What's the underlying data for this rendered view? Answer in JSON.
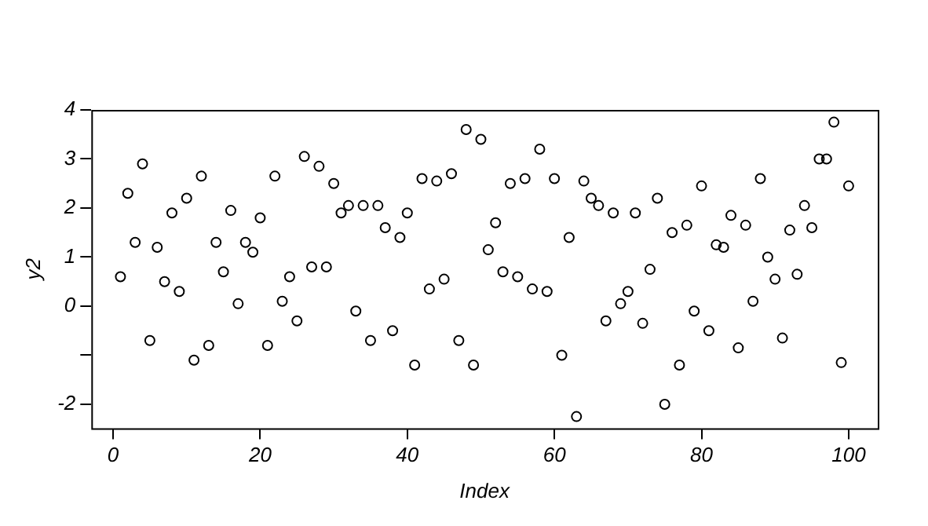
{
  "chart_data": {
    "type": "scatter",
    "xlabel": "Index",
    "ylabel": "y2",
    "x": [
      1,
      2,
      3,
      4,
      5,
      6,
      7,
      8,
      9,
      10,
      11,
      12,
      13,
      14,
      15,
      16,
      17,
      18,
      19,
      20,
      21,
      22,
      23,
      24,
      25,
      26,
      27,
      28,
      29,
      30,
      31,
      32,
      33,
      34,
      35,
      36,
      37,
      38,
      39,
      40,
      41,
      42,
      43,
      44,
      45,
      46,
      47,
      48,
      49,
      50,
      51,
      52,
      53,
      54,
      55,
      56,
      57,
      58,
      59,
      60,
      61,
      62,
      63,
      64,
      65,
      66,
      67,
      68,
      69,
      70,
      71,
      72,
      73,
      74,
      75,
      76,
      77,
      78,
      79,
      80,
      81,
      82,
      83,
      84,
      85,
      86,
      87,
      88,
      89,
      90,
      91,
      92,
      93,
      94,
      95,
      96,
      97,
      98,
      99,
      100
    ],
    "series": [
      {
        "color": "#000000",
        "values": [
          0.6,
          2.3,
          1.3,
          2.9,
          -0.7,
          1.2,
          0.5,
          1.9,
          0.3,
          2.2,
          -1.1,
          2.65,
          -0.8,
          1.3,
          0.7,
          1.95,
          0.05,
          1.3,
          1.1,
          1.8,
          -0.8,
          2.65,
          0.1,
          0.6,
          -0.3,
          3.05,
          0.8,
          2.85,
          0.8,
          2.5,
          1.9,
          2.05,
          -0.1,
          2.05,
          -0.7,
          2.05,
          1.6,
          -0.5,
          1.4,
          1.9,
          -1.2,
          2.6,
          0.35,
          2.55,
          0.55,
          2.7,
          -0.7,
          3.6,
          -1.2,
          3.4,
          1.15,
          1.7,
          0.7,
          2.5,
          0.6,
          2.6,
          0.35,
          3.2,
          0.3,
          2.6,
          -1.0,
          1.4,
          -2.25,
          2.55,
          2.2,
          2.05,
          -0.3,
          1.9,
          0.05,
          0.3,
          1.9,
          -0.35,
          0.75,
          2.2,
          -2.0,
          1.5,
          -1.2,
          1.65,
          -0.1,
          2.45,
          -0.5,
          1.25,
          1.2,
          1.85,
          -0.85,
          1.65,
          0.1,
          2.6,
          1.0,
          0.55,
          -0.65,
          1.55,
          0.65,
          2.05,
          1.6,
          3.0,
          3.0,
          3.75,
          -1.15,
          2.45
        ]
      }
    ],
    "xlim": [
      -2.96,
      103.96
    ],
    "ylim": [
      -2.49,
      4.0
    ],
    "xticks": [
      0,
      20,
      40,
      60,
      80,
      100
    ],
    "yticks": [
      {
        "value": -2,
        "label": "-2"
      },
      {
        "value": -1,
        "label": null
      },
      0,
      1,
      2,
      3,
      4
    ],
    "marker": "circle",
    "grid": false,
    "legend": false
  }
}
